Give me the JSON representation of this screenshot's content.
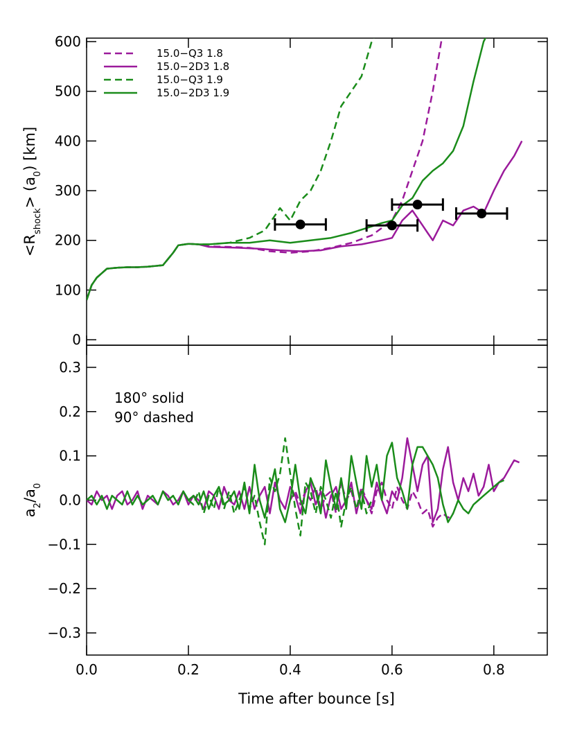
{
  "chart_data": [
    {
      "type": "line",
      "ylabel": [
        "<R",
        "shock",
        "> (a",
        "0",
        ") [km]"
      ],
      "xlim": [
        0,
        0.905
      ],
      "xticks": [
        0,
        0.2,
        0.4,
        0.6,
        0.8
      ],
      "ylim": [
        -11,
        607
      ],
      "yticks": [
        0,
        100,
        200,
        300,
        400,
        500,
        600
      ],
      "legend": "upper left",
      "series": [
        {
          "name": "15.0−Q3 1.8",
          "color": "#9b1a9b",
          "dashed": true,
          "x": [
            0,
            0.01,
            0.02,
            0.04,
            0.06,
            0.08,
            0.1,
            0.12,
            0.15,
            0.17,
            0.18,
            0.2,
            0.22,
            0.24,
            0.28,
            0.32,
            0.36,
            0.4,
            0.44,
            0.48,
            0.52,
            0.56,
            0.6,
            0.62,
            0.64,
            0.66,
            0.68,
            0.7
          ],
          "values": [
            80,
            110,
            125,
            143,
            145,
            146,
            146,
            147,
            150,
            175,
            190,
            193,
            192,
            188,
            187,
            185,
            178,
            175,
            178,
            185,
            195,
            210,
            240,
            280,
            340,
            400,
            500,
            620
          ]
        },
        {
          "name": "15.0−2D3 1.8",
          "color": "#9b1a9b",
          "dashed": false,
          "x": [
            0,
            0.01,
            0.02,
            0.04,
            0.06,
            0.08,
            0.1,
            0.12,
            0.15,
            0.17,
            0.18,
            0.2,
            0.22,
            0.24,
            0.3,
            0.34,
            0.38,
            0.42,
            0.46,
            0.5,
            0.54,
            0.58,
            0.6,
            0.62,
            0.64,
            0.66,
            0.67,
            0.68,
            0.7,
            0.72,
            0.74,
            0.76,
            0.78,
            0.8,
            0.82,
            0.84,
            0.855
          ],
          "values": [
            80,
            110,
            125,
            143,
            145,
            146,
            146,
            147,
            150,
            175,
            190,
            193,
            192,
            187,
            185,
            183,
            180,
            178,
            180,
            188,
            192,
            200,
            205,
            240,
            260,
            230,
            215,
            200,
            240,
            230,
            260,
            268,
            255,
            300,
            340,
            370,
            400
          ]
        },
        {
          "name": "15.0−Q3 1.9",
          "color": "#1a8c1a",
          "dashed": true,
          "x": [
            0,
            0.01,
            0.02,
            0.04,
            0.06,
            0.08,
            0.1,
            0.12,
            0.15,
            0.17,
            0.18,
            0.2,
            0.22,
            0.24,
            0.28,
            0.32,
            0.35,
            0.38,
            0.4,
            0.42,
            0.44,
            0.46,
            0.48,
            0.5,
            0.52,
            0.54,
            0.56,
            0.57
          ],
          "values": [
            80,
            110,
            125,
            143,
            145,
            146,
            146,
            147,
            150,
            175,
            190,
            193,
            192,
            192,
            195,
            205,
            220,
            265,
            240,
            280,
            300,
            340,
            400,
            470,
            500,
            530,
            600,
            620
          ]
        },
        {
          "name": "15.0−2D3 1.9",
          "color": "#1a8c1a",
          "dashed": false,
          "x": [
            0,
            0.01,
            0.02,
            0.04,
            0.06,
            0.08,
            0.1,
            0.12,
            0.15,
            0.17,
            0.18,
            0.2,
            0.22,
            0.24,
            0.28,
            0.32,
            0.36,
            0.4,
            0.44,
            0.48,
            0.52,
            0.56,
            0.58,
            0.6,
            0.62,
            0.64,
            0.66,
            0.68,
            0.7,
            0.72,
            0.74,
            0.76,
            0.78,
            0.79
          ],
          "values": [
            80,
            110,
            125,
            143,
            145,
            146,
            146,
            147,
            150,
            175,
            190,
            193,
            192,
            192,
            195,
            195,
            200,
            195,
            200,
            205,
            215,
            228,
            235,
            240,
            270,
            285,
            320,
            340,
            355,
            380,
            430,
            520,
            600,
            620
          ]
        }
      ],
      "errorbars": {
        "color": "#000000",
        "x": [
          0.42,
          0.6,
          0.65,
          0.776
        ],
        "values": [
          232,
          230,
          272,
          254
        ],
        "xerr": [
          0.05,
          0.05,
          0.05,
          0.05
        ]
      }
    },
    {
      "type": "line",
      "ylabel": [
        "a",
        "2",
        "/a",
        "0"
      ],
      "xlabel": "Time after bounce [s]",
      "annotations": [
        "180° solid",
        "90° dashed"
      ],
      "xlim": [
        0,
        0.905
      ],
      "xticks": [
        {
          "value": 0,
          "label": "0.0"
        },
        {
          "value": 0.2,
          "label": "0.2"
        },
        {
          "value": 0.4,
          "label": "0.4"
        },
        {
          "value": 0.6,
          "label": "0.6"
        },
        {
          "value": 0.8,
          "label": "0.8"
        }
      ],
      "ylim": [
        -0.35,
        0.35
      ],
      "yticks": [
        {
          "value": -0.3,
          "label": "−0.3"
        },
        {
          "value": -0.2,
          "label": "−0.2"
        },
        {
          "value": -0.1,
          "label": "−0.1"
        },
        {
          "value": 0,
          "label": "0.0"
        },
        {
          "value": 0.1,
          "label": "0.1"
        },
        {
          "value": 0.2,
          "label": "0.2"
        },
        {
          "value": 0.3,
          "label": "0.3"
        }
      ],
      "series": [
        {
          "color": "#9b1a9b",
          "dashed": true,
          "x": [
            0.4,
            0.41,
            0.42,
            0.43,
            0.44,
            0.45,
            0.46,
            0.47,
            0.48,
            0.49,
            0.5,
            0.51,
            0.52,
            0.53,
            0.54,
            0.55,
            0.56,
            0.57,
            0.58,
            0.59,
            0.6,
            0.61,
            0.62,
            0.63,
            0.64,
            0.65,
            0.66,
            0.67,
            0.68,
            0.69,
            0.7,
            0.71,
            0.72
          ],
          "values": [
            0,
            0.02,
            -0.01,
            0.02,
            0,
            0.03,
            -0.02,
            0.01,
            0.02,
            -0.03,
            0.04,
            0,
            0.02,
            -0.02,
            0.03,
            0,
            -0.03,
            0.02,
            0.04,
            0,
            -0.02,
            0.03,
            0,
            -0.02,
            0.02,
            0,
            -0.03,
            -0.02,
            -0.06,
            -0.04,
            -0.03,
            -0.04,
            -0.03
          ]
        },
        {
          "color": "#9b1a9b",
          "dashed": false,
          "x": [
            0,
            0.01,
            0.02,
            0.03,
            0.04,
            0.05,
            0.06,
            0.07,
            0.08,
            0.09,
            0.1,
            0.11,
            0.12,
            0.13,
            0.14,
            0.15,
            0.16,
            0.17,
            0.18,
            0.19,
            0.2,
            0.21,
            0.22,
            0.23,
            0.24,
            0.25,
            0.26,
            0.27,
            0.28,
            0.29,
            0.3,
            0.31,
            0.32,
            0.33,
            0.34,
            0.35,
            0.36,
            0.37,
            0.38,
            0.39,
            0.4,
            0.41,
            0.42,
            0.43,
            0.44,
            0.45,
            0.46,
            0.47,
            0.48,
            0.49,
            0.5,
            0.51,
            0.52,
            0.53,
            0.54,
            0.55,
            0.56,
            0.57,
            0.58,
            0.59,
            0.6,
            0.61,
            0.62,
            0.63,
            0.64,
            0.65,
            0.66,
            0.67,
            0.68,
            0.69,
            0.7,
            0.71,
            0.72,
            0.73,
            0.74,
            0.75,
            0.76,
            0.77,
            0.78,
            0.79,
            0.8,
            0.81,
            0.82,
            0.83,
            0.84,
            0.85
          ],
          "values": [
            0,
            -0.01,
            0.02,
            0,
            0.01,
            -0.02,
            0.01,
            0.02,
            -0.01,
            0,
            0.02,
            -0.02,
            0.01,
            0,
            -0.01,
            0.02,
            0.01,
            -0.01,
            0,
            0.02,
            -0.01,
            0.01,
            0,
            -0.02,
            0.02,
            0.01,
            -0.02,
            0.03,
            0,
            -0.01,
            0.02,
            -0.02,
            0.03,
            -0.02,
            0.01,
            0.03,
            -0.03,
            0.04,
            0,
            -0.02,
            0.03,
            0.01,
            -0.03,
            0.02,
            0.04,
            -0.01,
            0.02,
            -0.04,
            0.01,
            0.03,
            -0.02,
            0,
            0.04,
            -0.03,
            0.02,
            0,
            -0.02,
            0.04,
            0,
            -0.03,
            0.02,
            0,
            0.05,
            0.14,
            0.08,
            0.02,
            0.08,
            0.1,
            -0.05,
            -0.02,
            0.07,
            0.12,
            0.04,
            0,
            0.05,
            0.02,
            0.06,
            0.01,
            0.03,
            0.08,
            0.02,
            0.04,
            0.05,
            0.07,
            0.09,
            0.085
          ]
        },
        {
          "color": "#1a8c1a",
          "dashed": true,
          "x": [
            0.2,
            0.21,
            0.22,
            0.23,
            0.24,
            0.25,
            0.26,
            0.27,
            0.28,
            0.29,
            0.3,
            0.31,
            0.32,
            0.33,
            0.34,
            0.35,
            0.36,
            0.37,
            0.38,
            0.39,
            0.4,
            0.41,
            0.42,
            0.43,
            0.44,
            0.45,
            0.46,
            0.47,
            0.48,
            0.49,
            0.5,
            0.51,
            0.52,
            0.53,
            0.54,
            0.55,
            0.56
          ],
          "values": [
            0,
            -0.01,
            0.02,
            -0.03,
            0.01,
            -0.02,
            0.03,
            -0.02,
            0.02,
            -0.03,
            0,
            0.03,
            -0.02,
            0.01,
            -0.05,
            -0.1,
            0.05,
            0.02,
            0.06,
            0.14,
            0.06,
            -0.02,
            -0.08,
            0.04,
            0.02,
            -0.03,
            0.03,
            0,
            -0.04,
            0.02,
            -0.06,
            0,
            0.03,
            -0.02,
            0.02,
            -0.03,
            0
          ]
        },
        {
          "color": "#1a8c1a",
          "dashed": false,
          "x": [
            0,
            0.01,
            0.02,
            0.03,
            0.04,
            0.05,
            0.06,
            0.07,
            0.08,
            0.09,
            0.1,
            0.11,
            0.12,
            0.13,
            0.14,
            0.15,
            0.16,
            0.17,
            0.18,
            0.19,
            0.2,
            0.21,
            0.22,
            0.23,
            0.24,
            0.25,
            0.26,
            0.27,
            0.28,
            0.29,
            0.3,
            0.31,
            0.32,
            0.33,
            0.34,
            0.35,
            0.36,
            0.37,
            0.38,
            0.39,
            0.4,
            0.41,
            0.42,
            0.43,
            0.44,
            0.45,
            0.46,
            0.47,
            0.48,
            0.49,
            0.5,
            0.51,
            0.52,
            0.53,
            0.54,
            0.55,
            0.56,
            0.57,
            0.58,
            0.59,
            0.6,
            0.61,
            0.62,
            0.63,
            0.64,
            0.65,
            0.66,
            0.67,
            0.68,
            0.69,
            0.7,
            0.71,
            0.72,
            0.73,
            0.74,
            0.75,
            0.76,
            0.77,
            0.78,
            0.79,
            0.8,
            0.81,
            0.82
          ],
          "values": [
            0,
            0.01,
            -0.01,
            0.01,
            -0.02,
            0.01,
            0,
            -0.01,
            0.02,
            -0.01,
            0.01,
            -0.01,
            0,
            0.01,
            -0.01,
            0.02,
            0,
            0.01,
            -0.01,
            0.02,
            0,
            0.01,
            -0.01,
            0.02,
            -0.02,
            0.01,
            0.03,
            -0.01,
            0,
            0.02,
            -0.02,
            0.04,
            -0.03,
            0.08,
            0,
            -0.04,
            0.02,
            0.07,
            -0.02,
            -0.05,
            0,
            0.08,
            0,
            -0.03,
            0.05,
            0.02,
            -0.03,
            0.09,
            0.03,
            -0.02,
            0.05,
            -0.02,
            0.1,
            0.04,
            -0.02,
            0.1,
            0.03,
            0.08,
            0,
            0.1,
            0.13,
            0.05,
            0.02,
            -0.02,
            0.08,
            0.12,
            0.12,
            0.1,
            0.08,
            0.05,
            -0.01,
            -0.05,
            -0.03,
            0,
            -0.02,
            -0.03,
            -0.01,
            0,
            0.01,
            0.02,
            0.03,
            0.04,
            0.045
          ]
        }
      ]
    }
  ]
}
